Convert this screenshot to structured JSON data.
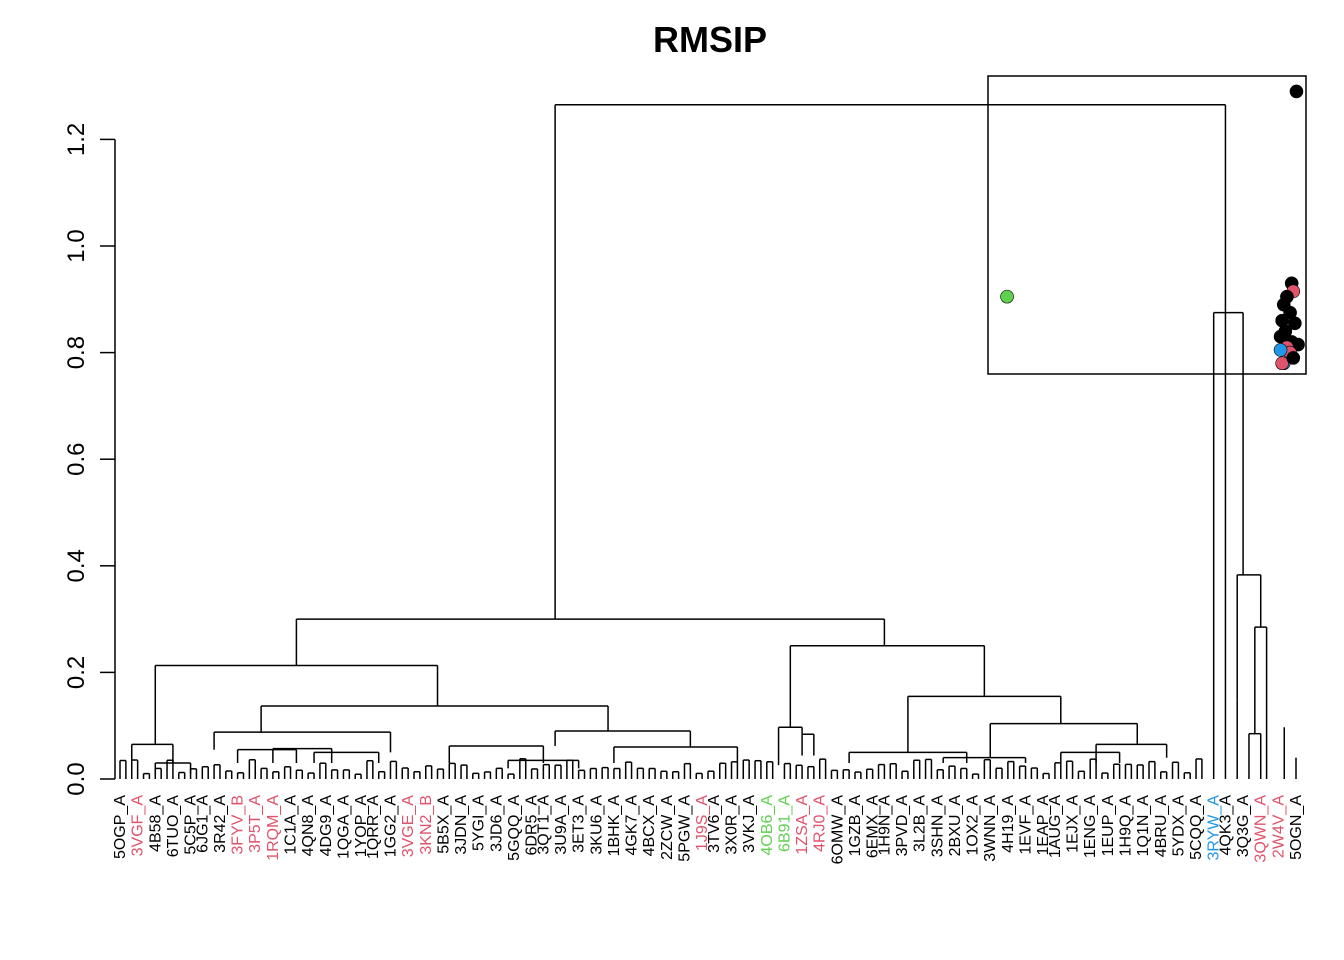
{
  "chart_data": {
    "type": "dendrogram",
    "title": "RMSIP",
    "ylabel": "",
    "ylim": [
      0,
      1.3
    ],
    "y_ticks": [
      "0.0",
      "0.2",
      "0.4",
      "0.6",
      "0.8",
      "1.0",
      "1.2"
    ],
    "grid": false,
    "leaf_count": 201,
    "leaf_labels": [
      {
        "index": 0,
        "text": "5OGP_A",
        "color": "#000000"
      },
      {
        "index": 1,
        "text": "3VGF_A",
        "color": "#DF536B"
      },
      {
        "index": 2,
        "text": "4B58_A",
        "color": "#000000"
      },
      {
        "index": 3,
        "text": "6TUO_A",
        "color": "#000000"
      },
      {
        "index": 4,
        "text": "5C5P_A",
        "color": "#000000"
      },
      {
        "index": 5,
        "text": "6JG1_A",
        "color": "#000000"
      },
      {
        "index": 6,
        "text": "3R42_A",
        "color": "#000000"
      },
      {
        "index": 7,
        "text": "3FYV_B",
        "color": "#DF536B"
      },
      {
        "index": 8,
        "text": "3P5T_A",
        "color": "#DF536B"
      },
      {
        "index": 9,
        "text": "1RQM_A",
        "color": "#DF536B"
      },
      {
        "index": 10,
        "text": "1C1A_A",
        "color": "#000000"
      },
      {
        "index": 11,
        "text": "4QN8_A",
        "color": "#000000"
      },
      {
        "index": 12,
        "text": "4DG9_A",
        "color": "#000000"
      },
      {
        "index": 13,
        "text": "1QGA_A",
        "color": "#000000"
      },
      {
        "index": 14,
        "text": "1YOP_A",
        "color": "#000000"
      },
      {
        "index": 15,
        "text": "1QRR_A",
        "color": "#000000"
      },
      {
        "index": 16,
        "text": "1GG2_A",
        "color": "#000000"
      },
      {
        "index": 17,
        "text": "3VGE_A",
        "color": "#DF536B"
      },
      {
        "index": 18,
        "text": "3KN2_B",
        "color": "#DF536B"
      },
      {
        "index": 19,
        "text": "5B5X_A",
        "color": "#000000"
      },
      {
        "index": 20,
        "text": "3JDN_A",
        "color": "#000000"
      },
      {
        "index": 21,
        "text": "5YGI_A",
        "color": "#000000"
      },
      {
        "index": 22,
        "text": "3JD6_A",
        "color": "#000000"
      },
      {
        "index": 23,
        "text": "5GQQ_A",
        "color": "#000000"
      },
      {
        "index": 24,
        "text": "6DR5_A",
        "color": "#000000"
      },
      {
        "index": 25,
        "text": "3QT1_A",
        "color": "#000000"
      },
      {
        "index": 26,
        "text": "3U9A_A",
        "color": "#000000"
      },
      {
        "index": 27,
        "text": "3ET3_A",
        "color": "#000000"
      },
      {
        "index": 28,
        "text": "3KU6_A",
        "color": "#000000"
      },
      {
        "index": 29,
        "text": "1BHK_A",
        "color": "#000000"
      },
      {
        "index": 30,
        "text": "4GK7_A",
        "color": "#000000"
      },
      {
        "index": 31,
        "text": "4BCX_A",
        "color": "#000000"
      },
      {
        "index": 32,
        "text": "2ZCW_A",
        "color": "#000000"
      },
      {
        "index": 33,
        "text": "5PGW_A",
        "color": "#000000"
      },
      {
        "index": 34,
        "text": "1J9S_A",
        "color": "#DF536B"
      },
      {
        "index": 35,
        "text": "3TV6_A",
        "color": "#000000"
      },
      {
        "index": 36,
        "text": "3X0R_A",
        "color": "#000000"
      },
      {
        "index": 37,
        "text": "3VKJ_A",
        "color": "#000000"
      },
      {
        "index": 38,
        "text": "4OB6_A",
        "color": "#61D04F"
      },
      {
        "index": 39,
        "text": "6B91_A",
        "color": "#61D04F"
      },
      {
        "index": 40,
        "text": "1ZSA_A",
        "color": "#DF536B"
      },
      {
        "index": 41,
        "text": "4RJ0_A",
        "color": "#DF536B"
      },
      {
        "index": 42,
        "text": "6OMW_A",
        "color": "#000000"
      },
      {
        "index": 43,
        "text": "1GZB_A",
        "color": "#000000"
      },
      {
        "index": 44,
        "text": "6EMX_A",
        "color": "#000000"
      },
      {
        "index": 45,
        "text": "1H9N_A",
        "color": "#000000"
      },
      {
        "index": 46,
        "text": "3PVD_A",
        "color": "#000000"
      },
      {
        "index": 47,
        "text": "3L2B_A",
        "color": "#000000"
      },
      {
        "index": 48,
        "text": "3SHN_A",
        "color": "#000000"
      },
      {
        "index": 49,
        "text": "2BXU_A",
        "color": "#000000"
      },
      {
        "index": 50,
        "text": "1OX2_A",
        "color": "#000000"
      },
      {
        "index": 51,
        "text": "3WNN_A",
        "color": "#000000"
      },
      {
        "index": 52,
        "text": "4H19_A",
        "color": "#000000"
      },
      {
        "index": 53,
        "text": "1EVF_A",
        "color": "#000000"
      },
      {
        "index": 54,
        "text": "1EAP_A",
        "color": "#000000"
      },
      {
        "index": 55,
        "text": "1AUG_A",
        "color": "#000000"
      },
      {
        "index": 56,
        "text": "1EJX_A",
        "color": "#000000"
      },
      {
        "index": 57,
        "text": "1ENG_A",
        "color": "#000000"
      },
      {
        "index": 58,
        "text": "1EUP_A",
        "color": "#000000"
      },
      {
        "index": 59,
        "text": "1H9Q_A",
        "color": "#000000"
      },
      {
        "index": 60,
        "text": "1Q1N_A",
        "color": "#000000"
      },
      {
        "index": 61,
        "text": "4BRU_A",
        "color": "#000000"
      },
      {
        "index": 62,
        "text": "5YDX_A",
        "color": "#000000"
      },
      {
        "index": 63,
        "text": "5CQQ_A",
        "color": "#000000"
      },
      {
        "index": 64,
        "text": "3RYW_A",
        "color": "#2297E6"
      },
      {
        "index": 65,
        "text": "4QK3_A",
        "color": "#000000"
      },
      {
        "index": 66,
        "text": "3Q3G_A",
        "color": "#000000"
      },
      {
        "index": 67,
        "text": "3QWN_A",
        "color": "#DF536B"
      },
      {
        "index": 68,
        "text": "2W4V_A",
        "color": "#DF536B"
      },
      {
        "index": 69,
        "text": "5OGN_A",
        "color": "#000000"
      }
    ],
    "scatter_inset": {
      "points": [
        {
          "x": 0.06,
          "y": 0.905,
          "color": "#61D04F"
        },
        {
          "x": 0.97,
          "y": 1.29,
          "color": "#000000"
        },
        {
          "x": 0.955,
          "y": 0.93,
          "color": "#000000"
        },
        {
          "x": 0.96,
          "y": 0.915,
          "color": "#DF536B"
        },
        {
          "x": 0.94,
          "y": 0.905,
          "color": "#000000"
        },
        {
          "x": 0.93,
          "y": 0.89,
          "color": "#000000"
        },
        {
          "x": 0.95,
          "y": 0.875,
          "color": "#000000"
        },
        {
          "x": 0.925,
          "y": 0.86,
          "color": "#000000"
        },
        {
          "x": 0.965,
          "y": 0.855,
          "color": "#000000"
        },
        {
          "x": 0.935,
          "y": 0.84,
          "color": "#000000"
        },
        {
          "x": 0.92,
          "y": 0.83,
          "color": "#000000"
        },
        {
          "x": 0.975,
          "y": 0.815,
          "color": "#000000"
        },
        {
          "x": 0.955,
          "y": 0.82,
          "color": "#000000"
        },
        {
          "x": 0.94,
          "y": 0.81,
          "color": "#DF536B"
        },
        {
          "x": 0.95,
          "y": 0.8,
          "color": "#DF536B"
        },
        {
          "x": 0.92,
          "y": 0.805,
          "color": "#2297E6"
        },
        {
          "x": 0.93,
          "y": 0.78,
          "color": "#2297E6"
        },
        {
          "x": 0.925,
          "y": 0.78,
          "color": "#DF536B"
        },
        {
          "x": 0.96,
          "y": 0.79,
          "color": "#000000"
        }
      ]
    },
    "colors": {
      "black": "#000000",
      "red": "#DF536B",
      "green": "#61D04F",
      "blue": "#2297E6"
    }
  }
}
